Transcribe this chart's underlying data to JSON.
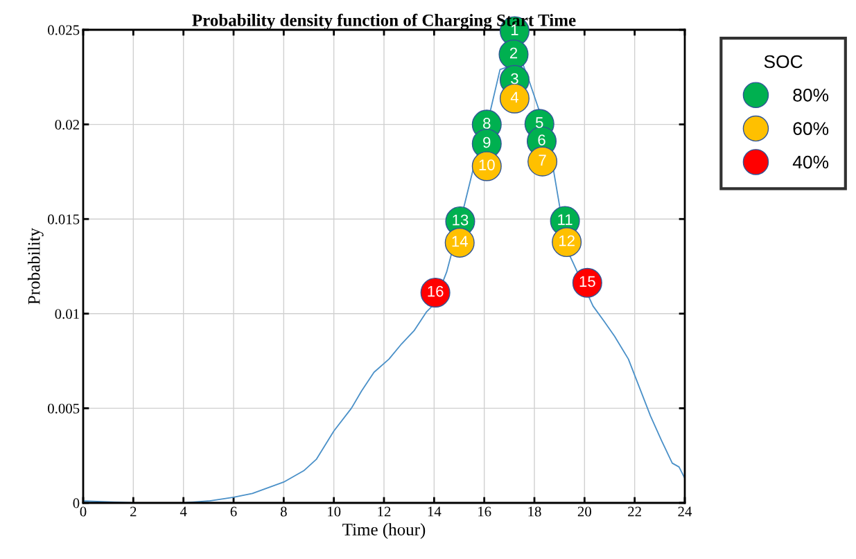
{
  "chart_data": {
    "type": "line",
    "title": "Probability density function of Charging Start Time",
    "xlabel": "Time (hour)",
    "ylabel": "Probability",
    "legend_title": "SOC",
    "xlim": [
      0,
      24
    ],
    "ylim": [
      0,
      0.025
    ],
    "xticks": [
      0,
      2,
      4,
      6,
      8,
      10,
      12,
      14,
      16,
      18,
      20,
      22,
      24
    ],
    "yticks": [
      0,
      0.005,
      0.01,
      0.015,
      0.02,
      0.025
    ],
    "grid": true,
    "legend": "right",
    "series": [
      {
        "color": "#4a90c8",
        "marker": "none",
        "x": [
          0,
          2,
          4,
          5,
          6,
          6.75,
          8,
          8.8,
          9.3,
          10,
          10.7,
          11.1,
          11.6,
          12.2,
          12.7,
          13.2,
          13.7,
          14,
          14.5,
          15.2,
          15.57,
          16.24,
          16.63,
          17.51,
          17.79,
          18.2,
          18.76,
          19.03,
          19.4,
          20.34,
          20.78,
          21.2,
          21.75,
          22.19,
          22.63,
          23.07,
          23.5,
          23.77,
          24
        ],
        "values": [
          0.0001,
          0,
          0,
          0.0001,
          0.0003,
          0.0005,
          0.0011,
          0.0017,
          0.0023,
          0.0038,
          0.005,
          0.0059,
          0.0069,
          0.0076,
          0.0084,
          0.0091,
          0.0101,
          0.0105,
          0.0122,
          0.0157,
          0.0177,
          0.0207,
          0.0229,
          0.0233,
          0.0223,
          0.0207,
          0.0176,
          0.0155,
          0.0131,
          0.0104,
          0.0096,
          0.0088,
          0.0076,
          0.0061,
          0.0046,
          0.0033,
          0.0021,
          0.0019,
          0.0013
        ]
      },
      {
        "type": "scatter",
        "name": "80%",
        "color": "#00b050",
        "marker": "circle",
        "x": [
          17.21,
          17.17,
          17.21,
          18.2,
          18.29,
          16.1,
          16.1,
          19.22,
          15.04
        ],
        "values": [
          0.02493,
          0.0237,
          0.02235,
          0.02003,
          0.01911,
          0.01999,
          0.01898,
          0.0149,
          0.01488
        ]
      },
      {
        "type": "scatter",
        "name": "60%",
        "color": "#ffc000",
        "marker": "circle",
        "x": [
          17.21,
          18.32,
          16.1,
          19.29,
          15.02
        ],
        "values": [
          0.02137,
          0.01804,
          0.01779,
          0.01378,
          0.01375
        ]
      },
      {
        "type": "scatter",
        "name": "40%",
        "color": "#ff0000",
        "marker": "circle",
        "x": [
          20.11,
          14.05
        ],
        "values": [
          0.01163,
          0.01111
        ]
      }
    ],
    "annotations": [
      {
        "text": "1",
        "x": 17.21,
        "y": 0.02493
      },
      {
        "text": "2",
        "x": 17.17,
        "y": 0.0237
      },
      {
        "text": "3",
        "x": 17.21,
        "y": 0.02235
      },
      {
        "text": "4",
        "x": 17.21,
        "y": 0.02137
      },
      {
        "text": "5",
        "x": 18.2,
        "y": 0.02003
      },
      {
        "text": "6",
        "x": 18.29,
        "y": 0.01911
      },
      {
        "text": "7",
        "x": 18.32,
        "y": 0.01804
      },
      {
        "text": "8",
        "x": 16.1,
        "y": 0.01999
      },
      {
        "text": "9",
        "x": 16.1,
        "y": 0.01898
      },
      {
        "text": "10",
        "x": 16.1,
        "y": 0.01779
      },
      {
        "text": "11",
        "x": 19.22,
        "y": 0.0149
      },
      {
        "text": "12",
        "x": 19.29,
        "y": 0.01378
      },
      {
        "text": "13",
        "x": 15.04,
        "y": 0.01488
      },
      {
        "text": "14",
        "x": 15.02,
        "y": 0.01375
      },
      {
        "text": "15",
        "x": 20.11,
        "y": 0.01163
      },
      {
        "text": "16",
        "x": 14.05,
        "y": 0.01111
      }
    ]
  }
}
